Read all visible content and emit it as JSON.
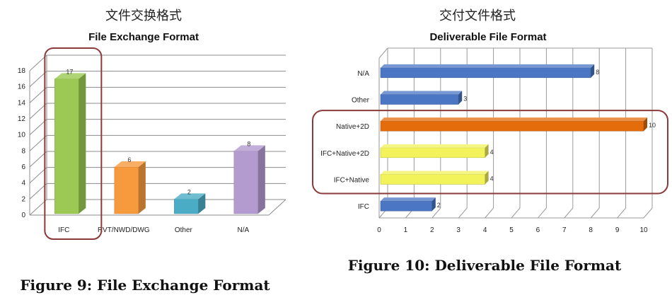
{
  "left": {
    "chinese_title": "文件交换格式",
    "caption": "Figure 9: File Exchange Format",
    "highlight_color": "#8b3a3a",
    "chart_data": {
      "type": "bar",
      "orientation": "vertical",
      "title": "File Exchange Format",
      "categories": [
        "IFC",
        "RVT/NWD/DWG",
        "Other",
        "N/A"
      ],
      "values": [
        17,
        6,
        2,
        8
      ],
      "colors": [
        "#9bc953",
        "#f79a3e",
        "#4bacc6",
        "#b39bd0"
      ],
      "ylim": [
        0,
        18
      ],
      "yticks": [
        0,
        2,
        4,
        6,
        8,
        10,
        12,
        14,
        16,
        18
      ],
      "grid": true,
      "highlighted_category": "IFC"
    }
  },
  "right": {
    "chinese_title": "交付文件格式",
    "caption": "Figure 10: Deliverable File Format",
    "highlight_color": "#8b3a3a",
    "chart_data": {
      "type": "bar",
      "orientation": "horizontal",
      "title": "Deliverable File Format",
      "categories": [
        "N/A",
        "Other",
        "Native+2D",
        "IFC+Native+2D",
        "IFC+Native",
        "IFC"
      ],
      "values": [
        8,
        3,
        10,
        4,
        4,
        2
      ],
      "colors": [
        "#4a76c4",
        "#4a76c4",
        "#e46c0a",
        "#f2f25a",
        "#f2f25a",
        "#4a76c4"
      ],
      "xlim": [
        0,
        10
      ],
      "xticks": [
        0,
        1,
        2,
        3,
        4,
        5,
        6,
        7,
        8,
        9,
        10
      ],
      "grid": true,
      "highlighted_categories": [
        "Native+2D",
        "IFC+Native+2D",
        "IFC+Native"
      ]
    }
  }
}
